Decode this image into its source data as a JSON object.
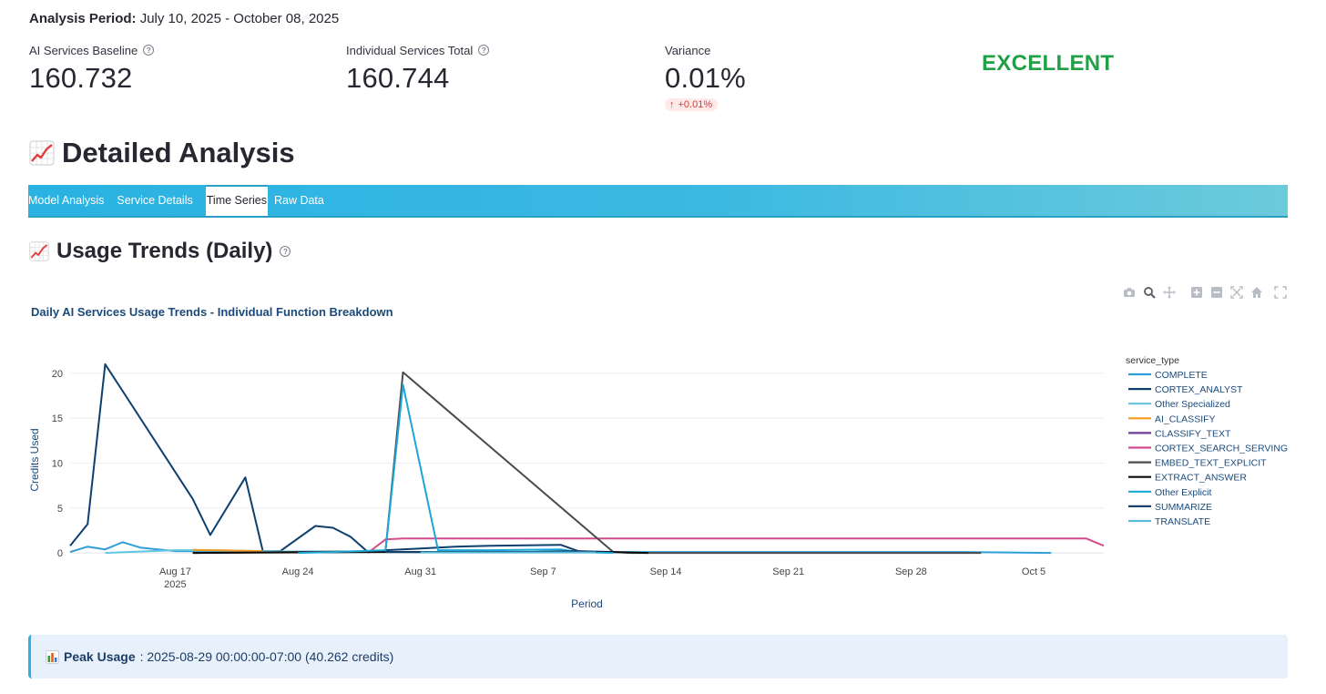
{
  "header": {
    "period_label": "Analysis Period:",
    "period_value": "July 10, 2025 - October 08, 2025"
  },
  "metrics": [
    {
      "label": "AI Services Baseline",
      "value": "160.732",
      "help": "?"
    },
    {
      "label": "Individual Services Total",
      "value": "160.744",
      "help": "?"
    },
    {
      "label": "Variance",
      "value": "0.01%",
      "delta": "+0.01%",
      "delta_arrow": "↑"
    }
  ],
  "status": {
    "label": "EXCELLENT",
    "color": "#21a045"
  },
  "section": {
    "title": "Detailed Analysis",
    "icon": "chart-increasing-icon"
  },
  "tabs": [
    {
      "label": "Model Analysis",
      "active": false
    },
    {
      "label": "Service Details",
      "active": false
    },
    {
      "label": "Time Series",
      "active": true
    },
    {
      "label": "Raw Data",
      "active": false
    }
  ],
  "subsection": {
    "title": "Usage Trends (Daily)",
    "help": "?"
  },
  "modebar": [
    "camera-icon",
    "zoom-icon",
    "pan-icon",
    "zoom-in-icon",
    "zoom-out-icon",
    "autoscale-icon",
    "reset-home-icon",
    "fullscreen-icon"
  ],
  "chart_data": {
    "type": "line",
    "title": "Daily AI Services Usage Trends - Individual Function Breakdown",
    "xlabel": "Period",
    "ylabel": "Credits Used",
    "legend_title": "service_type",
    "legend_position": "right",
    "x_start": "2025-08-11",
    "x_end": "2025-10-09",
    "x_ticks": [
      {
        "day": 6,
        "label": "Aug 17",
        "sub": "2025"
      },
      {
        "day": 13,
        "label": "Aug 24"
      },
      {
        "day": 20,
        "label": "Aug 31"
      },
      {
        "day": 27,
        "label": "Sep 7"
      },
      {
        "day": 34,
        "label": "Sep 14"
      },
      {
        "day": 41,
        "label": "Sep 21"
      },
      {
        "day": 48,
        "label": "Sep 28"
      },
      {
        "day": 55,
        "label": "Oct 5"
      }
    ],
    "ylim": [
      -0.8,
      21.5
    ],
    "y_ticks": [
      0,
      5,
      10,
      15,
      20
    ],
    "series": [
      {
        "name": "COMPLETE",
        "color": "#2e9fd6",
        "points": [
          [
            0,
            0.1
          ],
          [
            1,
            0.7
          ],
          [
            2,
            0.4
          ],
          [
            3,
            1.2
          ],
          [
            4,
            0.6
          ],
          [
            5,
            0.4
          ],
          [
            6,
            0.2
          ],
          [
            20,
            0.1
          ],
          [
            30,
            0.1
          ],
          [
            50,
            0.1
          ],
          [
            51,
            0.1
          ],
          [
            56,
            0.0
          ]
        ]
      },
      {
        "name": "CORTEX_ANALYST",
        "color": "#0e3f6e",
        "points": [
          [
            0,
            0.8
          ],
          [
            1,
            3.2
          ],
          [
            2,
            21.0
          ],
          [
            7,
            6.0
          ],
          [
            8,
            2.0
          ],
          [
            10,
            8.4
          ],
          [
            11,
            0.2
          ],
          [
            12,
            0.2
          ],
          [
            14,
            3.0
          ],
          [
            15,
            2.8
          ],
          [
            16,
            1.8
          ],
          [
            17,
            0.1
          ],
          [
            18,
            0.3
          ],
          [
            20,
            0.5
          ],
          [
            22,
            0.7
          ],
          [
            24,
            0.8
          ],
          [
            28,
            0.9
          ],
          [
            29,
            0.2
          ],
          [
            31,
            0.1
          ]
        ]
      },
      {
        "name": "Other Specialized",
        "color": "#62c6e0",
        "points": [
          [
            2,
            0.0
          ],
          [
            6,
            0.3
          ],
          [
            8,
            0.3
          ],
          [
            11,
            0.2
          ],
          [
            15,
            0.1
          ],
          [
            20,
            0.1
          ],
          [
            26,
            0.1
          ],
          [
            28,
            0.2
          ]
        ]
      },
      {
        "name": "AI_CLASSIFY",
        "color": "#f59a1f",
        "points": [
          [
            7,
            0.35
          ],
          [
            11,
            0.2
          ]
        ]
      },
      {
        "name": "CLASSIFY_TEXT",
        "color": "#6b3d9a",
        "points": [
          [
            20,
            0.1
          ],
          [
            28,
            0.1
          ]
        ]
      },
      {
        "name": "CORTEX_SEARCH_SERVING",
        "color": "#d34b8d",
        "points": [
          [
            17,
            0.0
          ],
          [
            18,
            1.5
          ],
          [
            19,
            1.6
          ],
          [
            57,
            1.6
          ],
          [
            58,
            1.6
          ],
          [
            59,
            0.8
          ]
        ]
      },
      {
        "name": "EMBED_TEXT_EXPLICIT",
        "color": "#4b4b4e",
        "points": [
          [
            7,
            0.0
          ],
          [
            18,
            0.2
          ],
          [
            19,
            20.1
          ],
          [
            31,
            0.1
          ],
          [
            32,
            0.0
          ],
          [
            35,
            0.0
          ],
          [
            45,
            0.0
          ],
          [
            52,
            0.0
          ]
        ]
      },
      {
        "name": "EXTRACT_ANSWER",
        "color": "#0b0b0b",
        "points": [
          [
            7,
            0.0
          ],
          [
            18,
            0.1
          ],
          [
            24,
            0.1
          ],
          [
            31,
            0.1
          ],
          [
            33,
            0.0
          ]
        ]
      },
      {
        "name": "Other Explicit",
        "color": "#1aa6d6",
        "points": [
          [
            13,
            0.0
          ],
          [
            15,
            0.1
          ],
          [
            18,
            0.3
          ],
          [
            19,
            18.7
          ],
          [
            21,
            0.3
          ],
          [
            24,
            0.3
          ],
          [
            28,
            0.4
          ],
          [
            29,
            0.1
          ],
          [
            31,
            0.0
          ]
        ]
      },
      {
        "name": "SUMMARIZE",
        "color": "#16406e",
        "points": [
          [
            18,
            0.1
          ],
          [
            26,
            0.1
          ],
          [
            29,
            0.2
          ],
          [
            30,
            0.1
          ]
        ]
      },
      {
        "name": "TRANSLATE",
        "color": "#56bcd9",
        "points": [
          [
            20,
            0.05
          ],
          [
            30,
            0.05
          ]
        ]
      }
    ]
  },
  "peak": {
    "label": "Peak Usage",
    "value": ": 2025-08-29 00:00:00-07:00 (40.262 credits)"
  }
}
